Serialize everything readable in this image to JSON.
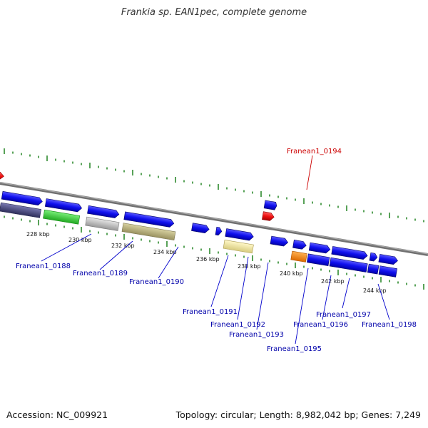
{
  "title": "Frankia sp. EAN1pec, complete genome",
  "footer": {
    "accession": "Accession: NC_009921",
    "stats": "Topology: circular; Length: 8,982,042 bp; Genes: 7,249"
  },
  "colors": {
    "backbone": "#888888",
    "tick": "#2e8b2e",
    "gene_forward": "#1010ee",
    "highlight": "#ee1111",
    "label": "#0000aa",
    "label_highlight": "#cc0000"
  },
  "scale": {
    "unit": "kbp",
    "ticks": [
      "228 kbp",
      "230 kbp",
      "232 kbp",
      "234 kbp",
      "236 kbp",
      "238 kbp",
      "240 kbp",
      "242 kbp",
      "244 kbp"
    ]
  },
  "genes": [
    {
      "id": "Franean1_0188",
      "strand": "+",
      "cog_color": "#4a4a8a"
    },
    {
      "id": "Franean1_0189",
      "strand": "+",
      "cog_color": "#33cc33"
    },
    {
      "id": "Franean1_0190",
      "strand": "+",
      "cog_color": "#bbbbbb"
    },
    {
      "id": "Franean1_0191",
      "strand": "+",
      "cog_color": "#b8b07a"
    },
    {
      "id": "Franean1_0192",
      "strand": "+",
      "cog_color": "#1010ee"
    },
    {
      "id": "Franean1_0193",
      "strand": "+",
      "cog_color": "#f0e6a0"
    },
    {
      "id": "Franean1_0194",
      "strand": "+",
      "cog_color": "#ee1111",
      "highlight": true
    },
    {
      "id": "Franean1_0195",
      "strand": "+",
      "cog_color": "#1010ee"
    },
    {
      "id": "Franean1_0196",
      "strand": "+",
      "cog_color": "#ff8800"
    },
    {
      "id": "Franean1_0197",
      "strand": "+",
      "cog_color": "#1010ee"
    },
    {
      "id": "Franean1_0198",
      "strand": "+",
      "cog_color": "#1010ee"
    }
  ]
}
